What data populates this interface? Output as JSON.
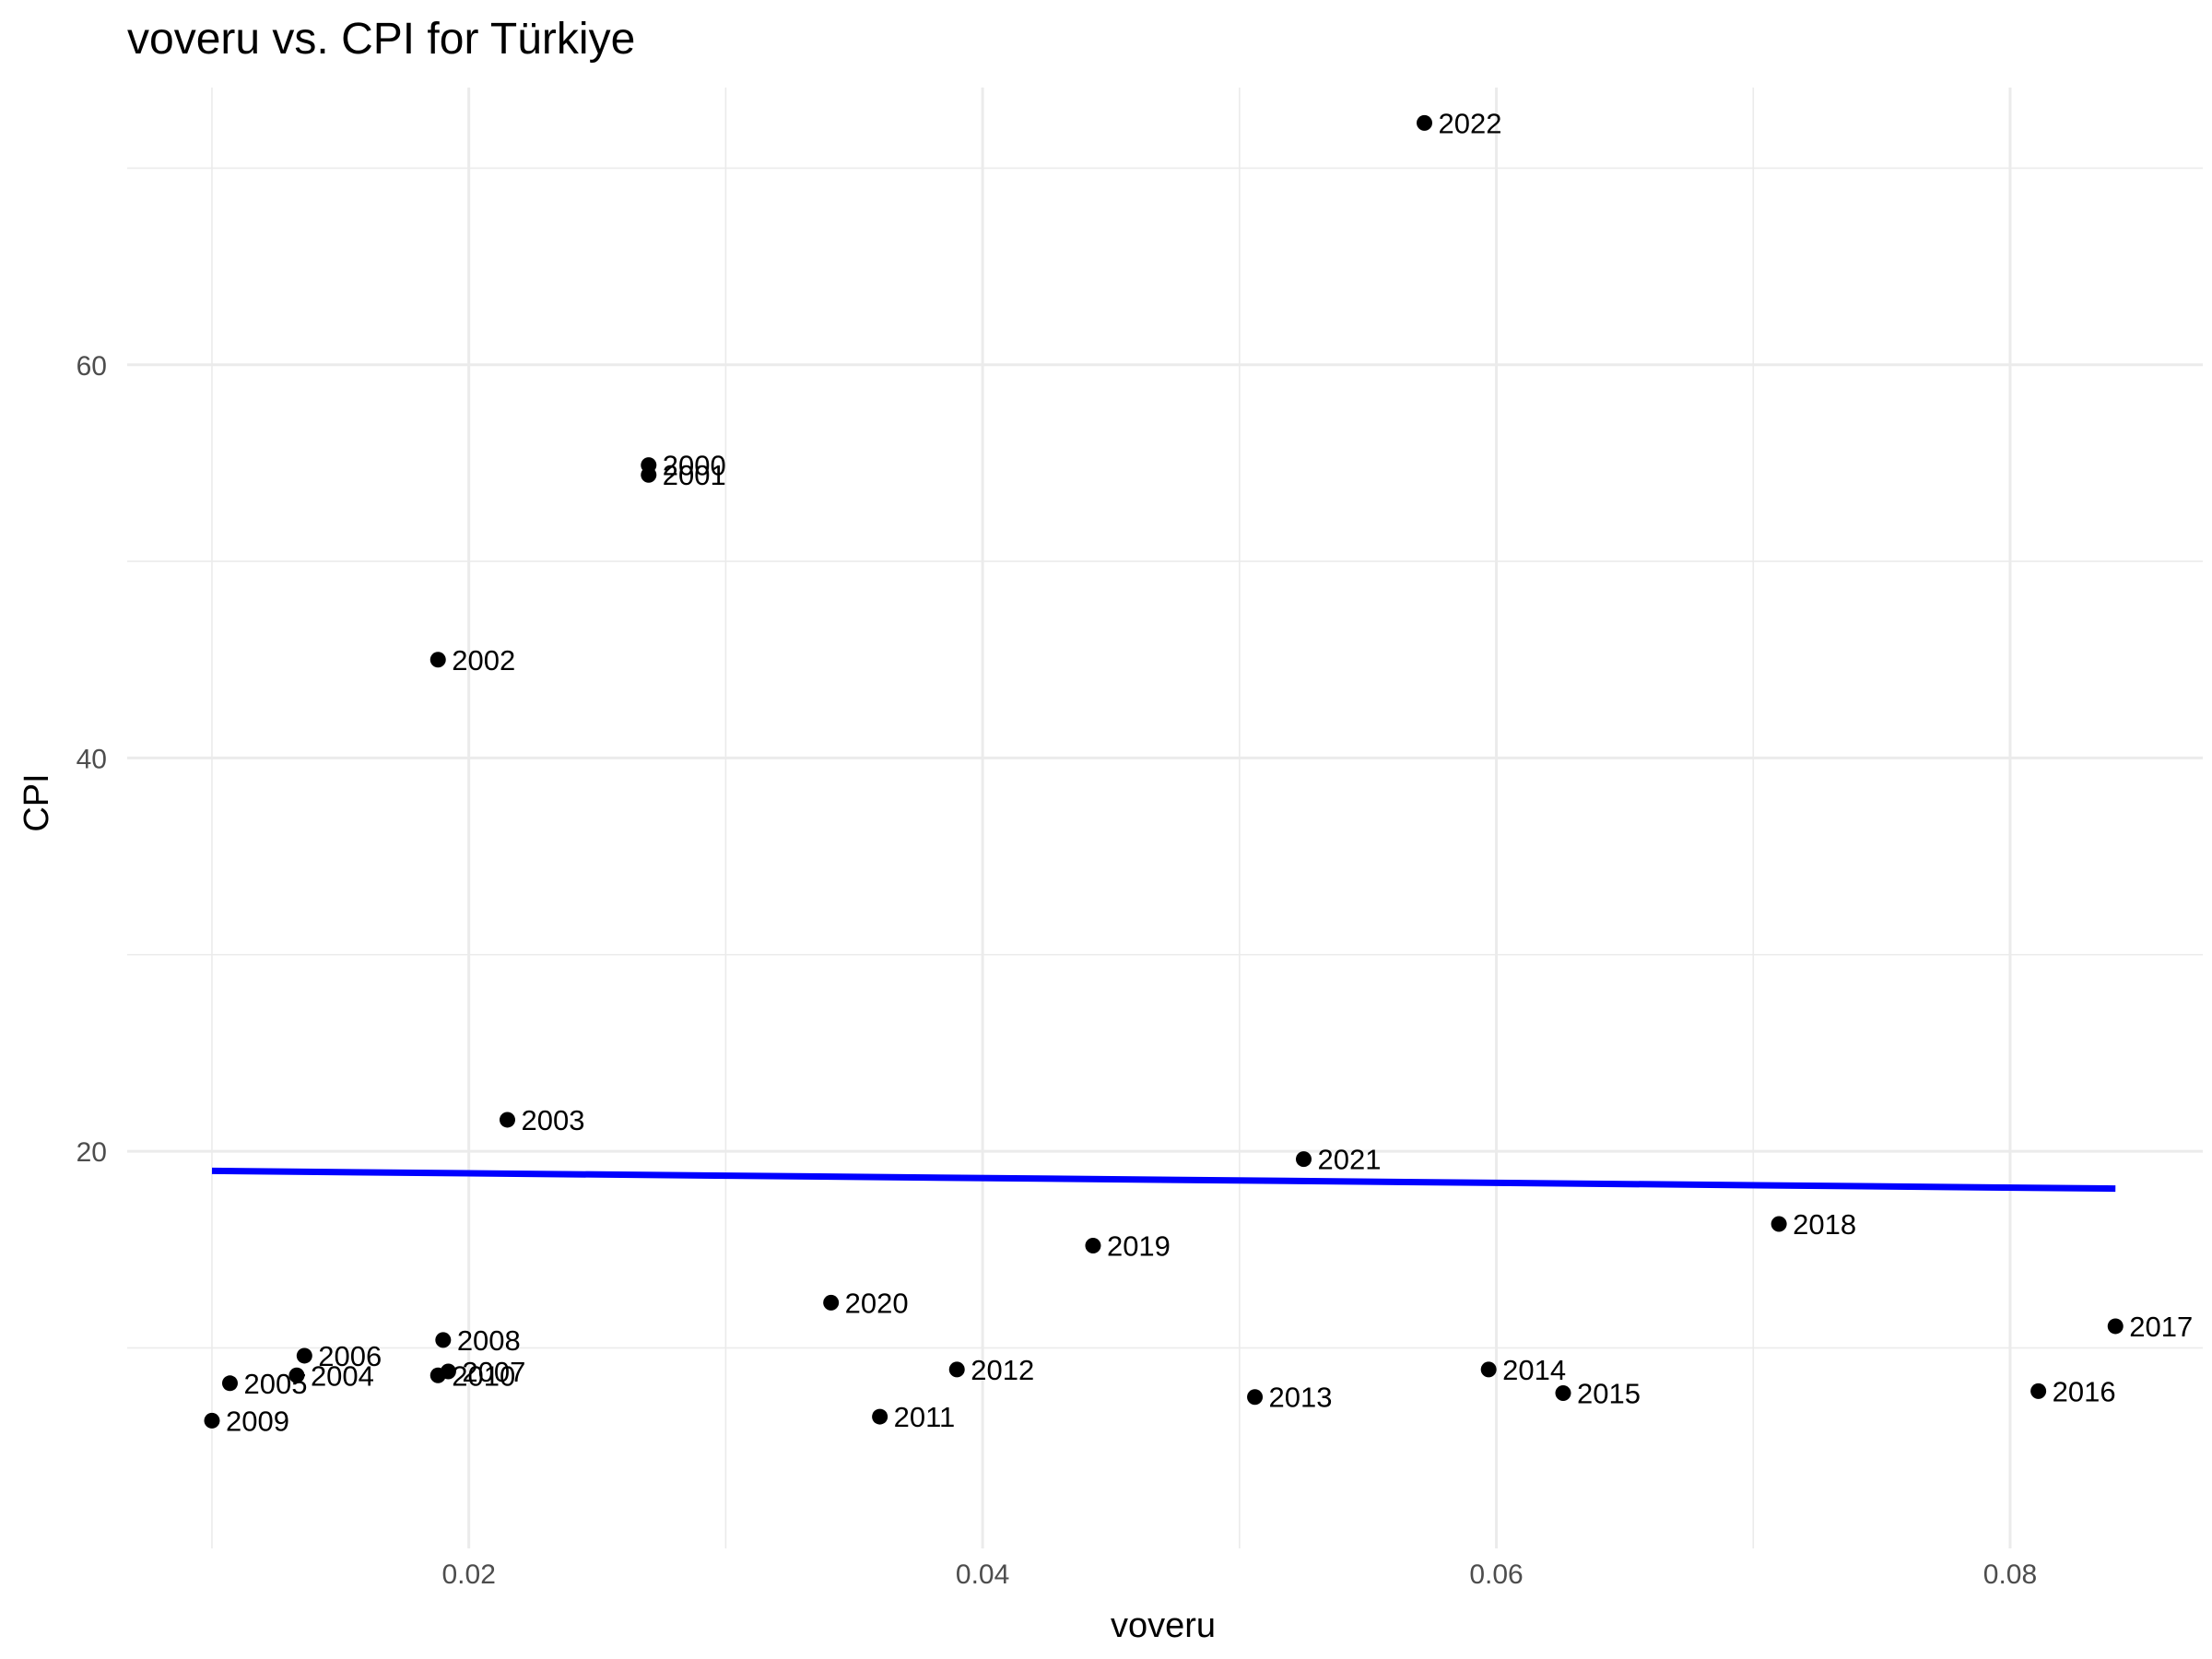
{
  "chart_data": {
    "type": "scatter",
    "title": "voveru vs. CPI for Türkiye",
    "xlabel": "voveru",
    "ylabel": "CPI",
    "xlim": [
      0.0067,
      0.0875
    ],
    "ylim": [
      -0.2,
      74.1
    ],
    "x_ticks": [
      0.02,
      0.04,
      0.06,
      0.08
    ],
    "x_tick_labels": [
      "0.02",
      "0.04",
      "0.06",
      "0.08"
    ],
    "y_ticks": [
      20,
      40,
      60
    ],
    "y_tick_labels": [
      "20",
      "40",
      "60"
    ],
    "grid": true,
    "points": [
      {
        "label": "2000",
        "x": 0.027,
        "y": 54.9
      },
      {
        "label": "2001",
        "x": 0.027,
        "y": 54.4
      },
      {
        "label": "2002",
        "x": 0.0188,
        "y": 45.0
      },
      {
        "label": "2003",
        "x": 0.0215,
        "y": 21.6
      },
      {
        "label": "2004",
        "x": 0.0133,
        "y": 8.6
      },
      {
        "label": "2005",
        "x": 0.0107,
        "y": 8.2
      },
      {
        "label": "2006",
        "x": 0.0136,
        "y": 9.6
      },
      {
        "label": "2007",
        "x": 0.0192,
        "y": 8.8
      },
      {
        "label": "2008",
        "x": 0.019,
        "y": 10.4
      },
      {
        "label": "2009",
        "x": 0.01,
        "y": 6.3
      },
      {
        "label": "2010",
        "x": 0.0188,
        "y": 8.6
      },
      {
        "label": "2011",
        "x": 0.036,
        "y": 6.5
      },
      {
        "label": "2012",
        "x": 0.039,
        "y": 8.9
      },
      {
        "label": "2013",
        "x": 0.0506,
        "y": 7.5
      },
      {
        "label": "2014",
        "x": 0.0597,
        "y": 8.9
      },
      {
        "label": "2015",
        "x": 0.0626,
        "y": 7.7
      },
      {
        "label": "2016",
        "x": 0.0811,
        "y": 7.8
      },
      {
        "label": "2017",
        "x": 0.0841,
        "y": 11.1
      },
      {
        "label": "2018",
        "x": 0.071,
        "y": 16.3
      },
      {
        "label": "2019",
        "x": 0.0443,
        "y": 15.2
      },
      {
        "label": "2020",
        "x": 0.0341,
        "y": 12.3
      },
      {
        "label": "2021",
        "x": 0.0525,
        "y": 19.6
      },
      {
        "label": "2022",
        "x": 0.0572,
        "y": 72.3
      }
    ],
    "fit_line": {
      "color": "#0000ff",
      "x": [
        0.01,
        0.0841
      ],
      "y": [
        19.0,
        18.1
      ]
    },
    "point_color": "#000000"
  }
}
